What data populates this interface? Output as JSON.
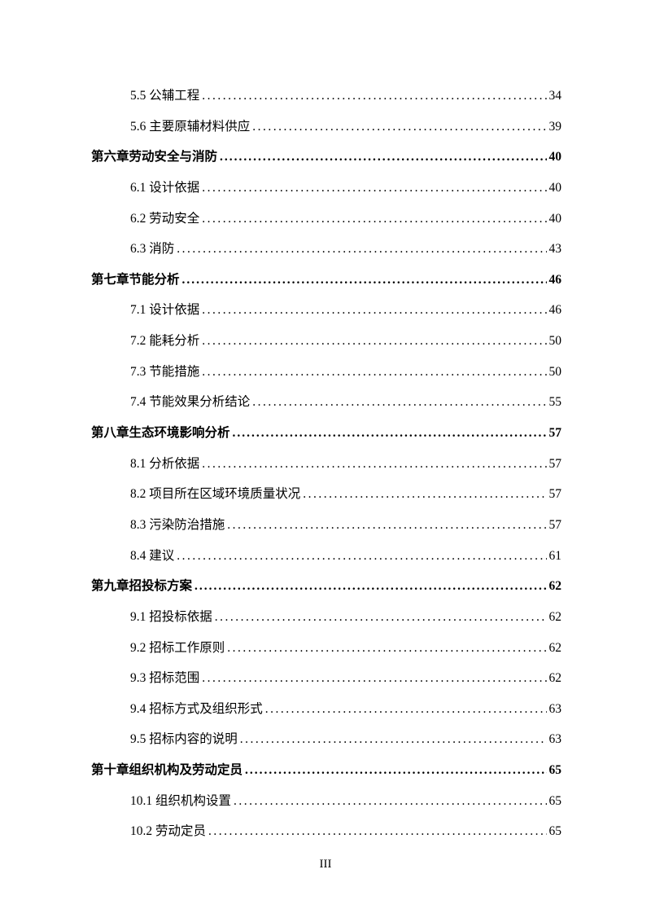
{
  "page_footer": "III",
  "text_color": "#000000",
  "background_color": "#ffffff",
  "dot_fill": "........................................................................................................................",
  "entries": [
    {
      "level": "section",
      "label": "5.5 公辅工程",
      "page": "34"
    },
    {
      "level": "section",
      "label": "5.6 主要原辅材料供应",
      "page": "39"
    },
    {
      "level": "chapter",
      "label": "第六章劳动安全与消防",
      "page": "40"
    },
    {
      "level": "section",
      "label": "6.1 设计依据",
      "page": "40"
    },
    {
      "level": "section",
      "label": "6.2 劳动安全",
      "page": "40"
    },
    {
      "level": "section",
      "label": "6.3 消防",
      "page": "43"
    },
    {
      "level": "chapter",
      "label": "第七章节能分析",
      "page": "46"
    },
    {
      "level": "section",
      "label": "7.1 设计依据",
      "page": "46"
    },
    {
      "level": "section",
      "label": "7.2 能耗分析",
      "page": "50"
    },
    {
      "level": "section",
      "label": "7.3 节能措施",
      "page": "50"
    },
    {
      "level": "section",
      "label": "7.4 节能效果分析结论",
      "page": "55"
    },
    {
      "level": "chapter",
      "label": "第八章生态环境影响分析",
      "page": "57"
    },
    {
      "level": "section",
      "label": "8.1 分析依据",
      "page": "57"
    },
    {
      "level": "section",
      "label": "8.2 项目所在区域环境质量状况",
      "page": "57"
    },
    {
      "level": "section",
      "label": "8.3 污染防治措施",
      "page": "57"
    },
    {
      "level": "section",
      "label": "8.4 建议",
      "page": "61"
    },
    {
      "level": "chapter",
      "label": "第九章招投标方案",
      "page": "62"
    },
    {
      "level": "section",
      "label": "9.1 招投标依据",
      "page": "62"
    },
    {
      "level": "section",
      "label": "9.2 招标工作原则",
      "page": "62"
    },
    {
      "level": "section",
      "label": "9.3 招标范围",
      "page": "62"
    },
    {
      "level": "section",
      "label": "9.4 招标方式及组织形式",
      "page": "63"
    },
    {
      "level": "section",
      "label": "9.5 招标内容的说明",
      "page": "63"
    },
    {
      "level": "chapter",
      "label": "第十章组织机构及劳动定员",
      "page": "65"
    },
    {
      "level": "section",
      "label": "10.1 组织机构设置",
      "page": "65"
    },
    {
      "level": "section",
      "label": "10.2 劳动定员",
      "page": "65"
    }
  ]
}
